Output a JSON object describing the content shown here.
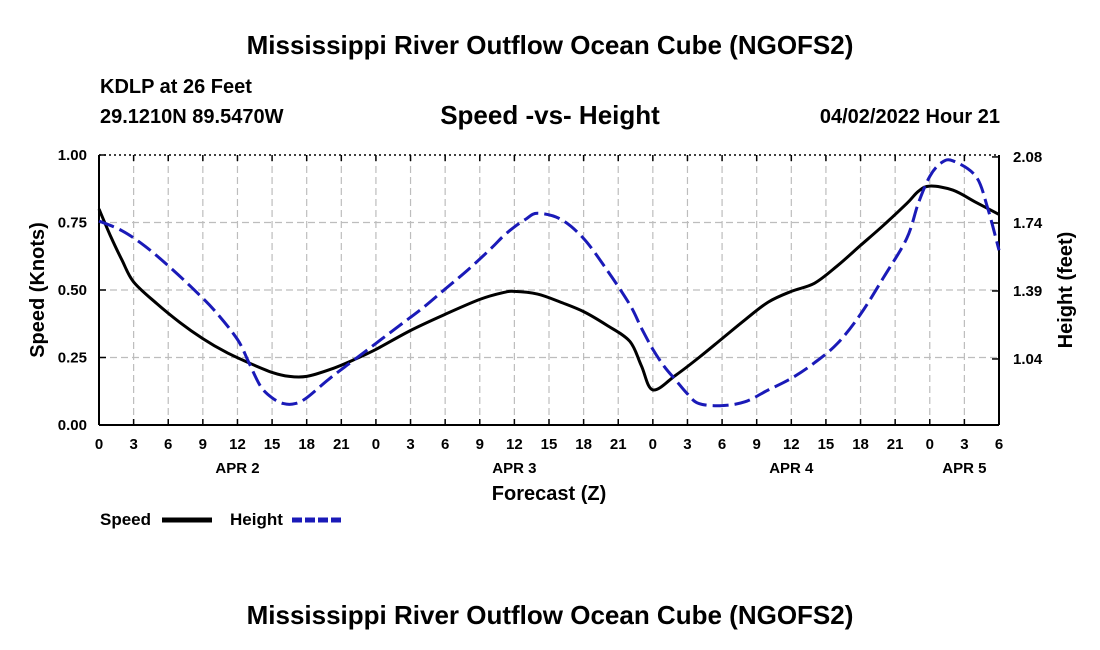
{
  "page": {
    "title_top": "Mississippi River Outflow Ocean Cube (NGOFS2)",
    "title_bottom": "Mississippi River Outflow Ocean Cube (NGOFS2)",
    "station": "KDLP at 26 Feet",
    "coords": "29.1210N  89.5470W",
    "subtitle": "Speed -vs- Height",
    "datetime": "04/02/2022 Hour 21"
  },
  "legend": {
    "speed_label": "Speed",
    "height_label": "Height"
  },
  "colors": {
    "speed": "#000000",
    "height": "#1a1ab8",
    "grid": "#bdbdbd"
  },
  "chart_data": {
    "type": "line",
    "title": "Speed -vs- Height",
    "xlabel": "Forecast (Z)",
    "ylabel": "Speed (Knots)",
    "y2label": "Height (feet)",
    "xlim": [
      0,
      78
    ],
    "ylim": [
      0,
      1.0
    ],
    "y2lim": [
      0.7,
      2.09
    ],
    "x_ticks": [
      0,
      3,
      6,
      9,
      12,
      15,
      18,
      21,
      24,
      27,
      30,
      33,
      36,
      39,
      42,
      45,
      48,
      51,
      54,
      57,
      60,
      63,
      66,
      69,
      72,
      75,
      78
    ],
    "x_tick_labels": [
      "0",
      "3",
      "6",
      "9",
      "12",
      "15",
      "18",
      "21",
      "0",
      "3",
      "6",
      "9",
      "12",
      "15",
      "18",
      "21",
      "0",
      "3",
      "6",
      "9",
      "12",
      "15",
      "18",
      "21",
      "0",
      "3",
      "6"
    ],
    "y_ticks": [
      "0.00",
      "0.25",
      "0.50",
      "0.75",
      "1.00"
    ],
    "y2_ticks": [
      "1.04",
      "1.39",
      "1.74",
      "2.08"
    ],
    "day_labels": [
      {
        "x": 12,
        "label": "APR 2"
      },
      {
        "x": 36,
        "label": "APR 3"
      },
      {
        "x": 60,
        "label": "APR 4"
      },
      {
        "x": 75,
        "label": "APR 5"
      }
    ],
    "series": [
      {
        "name": "Speed",
        "axis": "left",
        "x": [
          0,
          1,
          2,
          3,
          5,
          7,
          9,
          11,
          13,
          15,
          16.5,
          18,
          20,
          22,
          24,
          27,
          30,
          33,
          35,
          36,
          38,
          40,
          42,
          44,
          46,
          47,
          48,
          50,
          52,
          54,
          56,
          58,
          60,
          62,
          64,
          66,
          68,
          70,
          71,
          72,
          74,
          76,
          78
        ],
        "values": [
          0.8,
          0.7,
          0.61,
          0.53,
          0.45,
          0.38,
          0.32,
          0.27,
          0.23,
          0.195,
          0.18,
          0.18,
          0.205,
          0.24,
          0.28,
          0.35,
          0.41,
          0.465,
          0.49,
          0.495,
          0.485,
          0.455,
          0.42,
          0.37,
          0.31,
          0.22,
          0.13,
          0.185,
          0.25,
          0.32,
          0.39,
          0.455,
          0.495,
          0.525,
          0.59,
          0.665,
          0.74,
          0.82,
          0.865,
          0.885,
          0.87,
          0.825,
          0.78
        ]
      },
      {
        "name": "Height",
        "axis": "right",
        "x": [
          0,
          2,
          4,
          6,
          8,
          10,
          12,
          13,
          14,
          15,
          16,
          17,
          18,
          20,
          22,
          24,
          26,
          28,
          30,
          32,
          34,
          35,
          36,
          37,
          38,
          40,
          42,
          44,
          46,
          47,
          48,
          49,
          50,
          51,
          52,
          54,
          56,
          58,
          60,
          62,
          64,
          66,
          68,
          70,
          71,
          72,
          73,
          74,
          76,
          77,
          78
        ],
        "values": [
          1.75,
          1.7,
          1.62,
          1.52,
          1.41,
          1.29,
          1.14,
          1.02,
          0.9,
          0.84,
          0.81,
          0.81,
          0.84,
          0.94,
          1.03,
          1.12,
          1.21,
          1.3,
          1.4,
          1.5,
          1.61,
          1.67,
          1.72,
          1.76,
          1.79,
          1.76,
          1.66,
          1.5,
          1.32,
          1.2,
          1.09,
          1.0,
          0.93,
          0.86,
          0.81,
          0.8,
          0.82,
          0.88,
          0.94,
          1.02,
          1.12,
          1.27,
          1.46,
          1.66,
          1.84,
          1.98,
          2.05,
          2.06,
          1.98,
          1.82,
          1.6
        ]
      }
    ]
  }
}
